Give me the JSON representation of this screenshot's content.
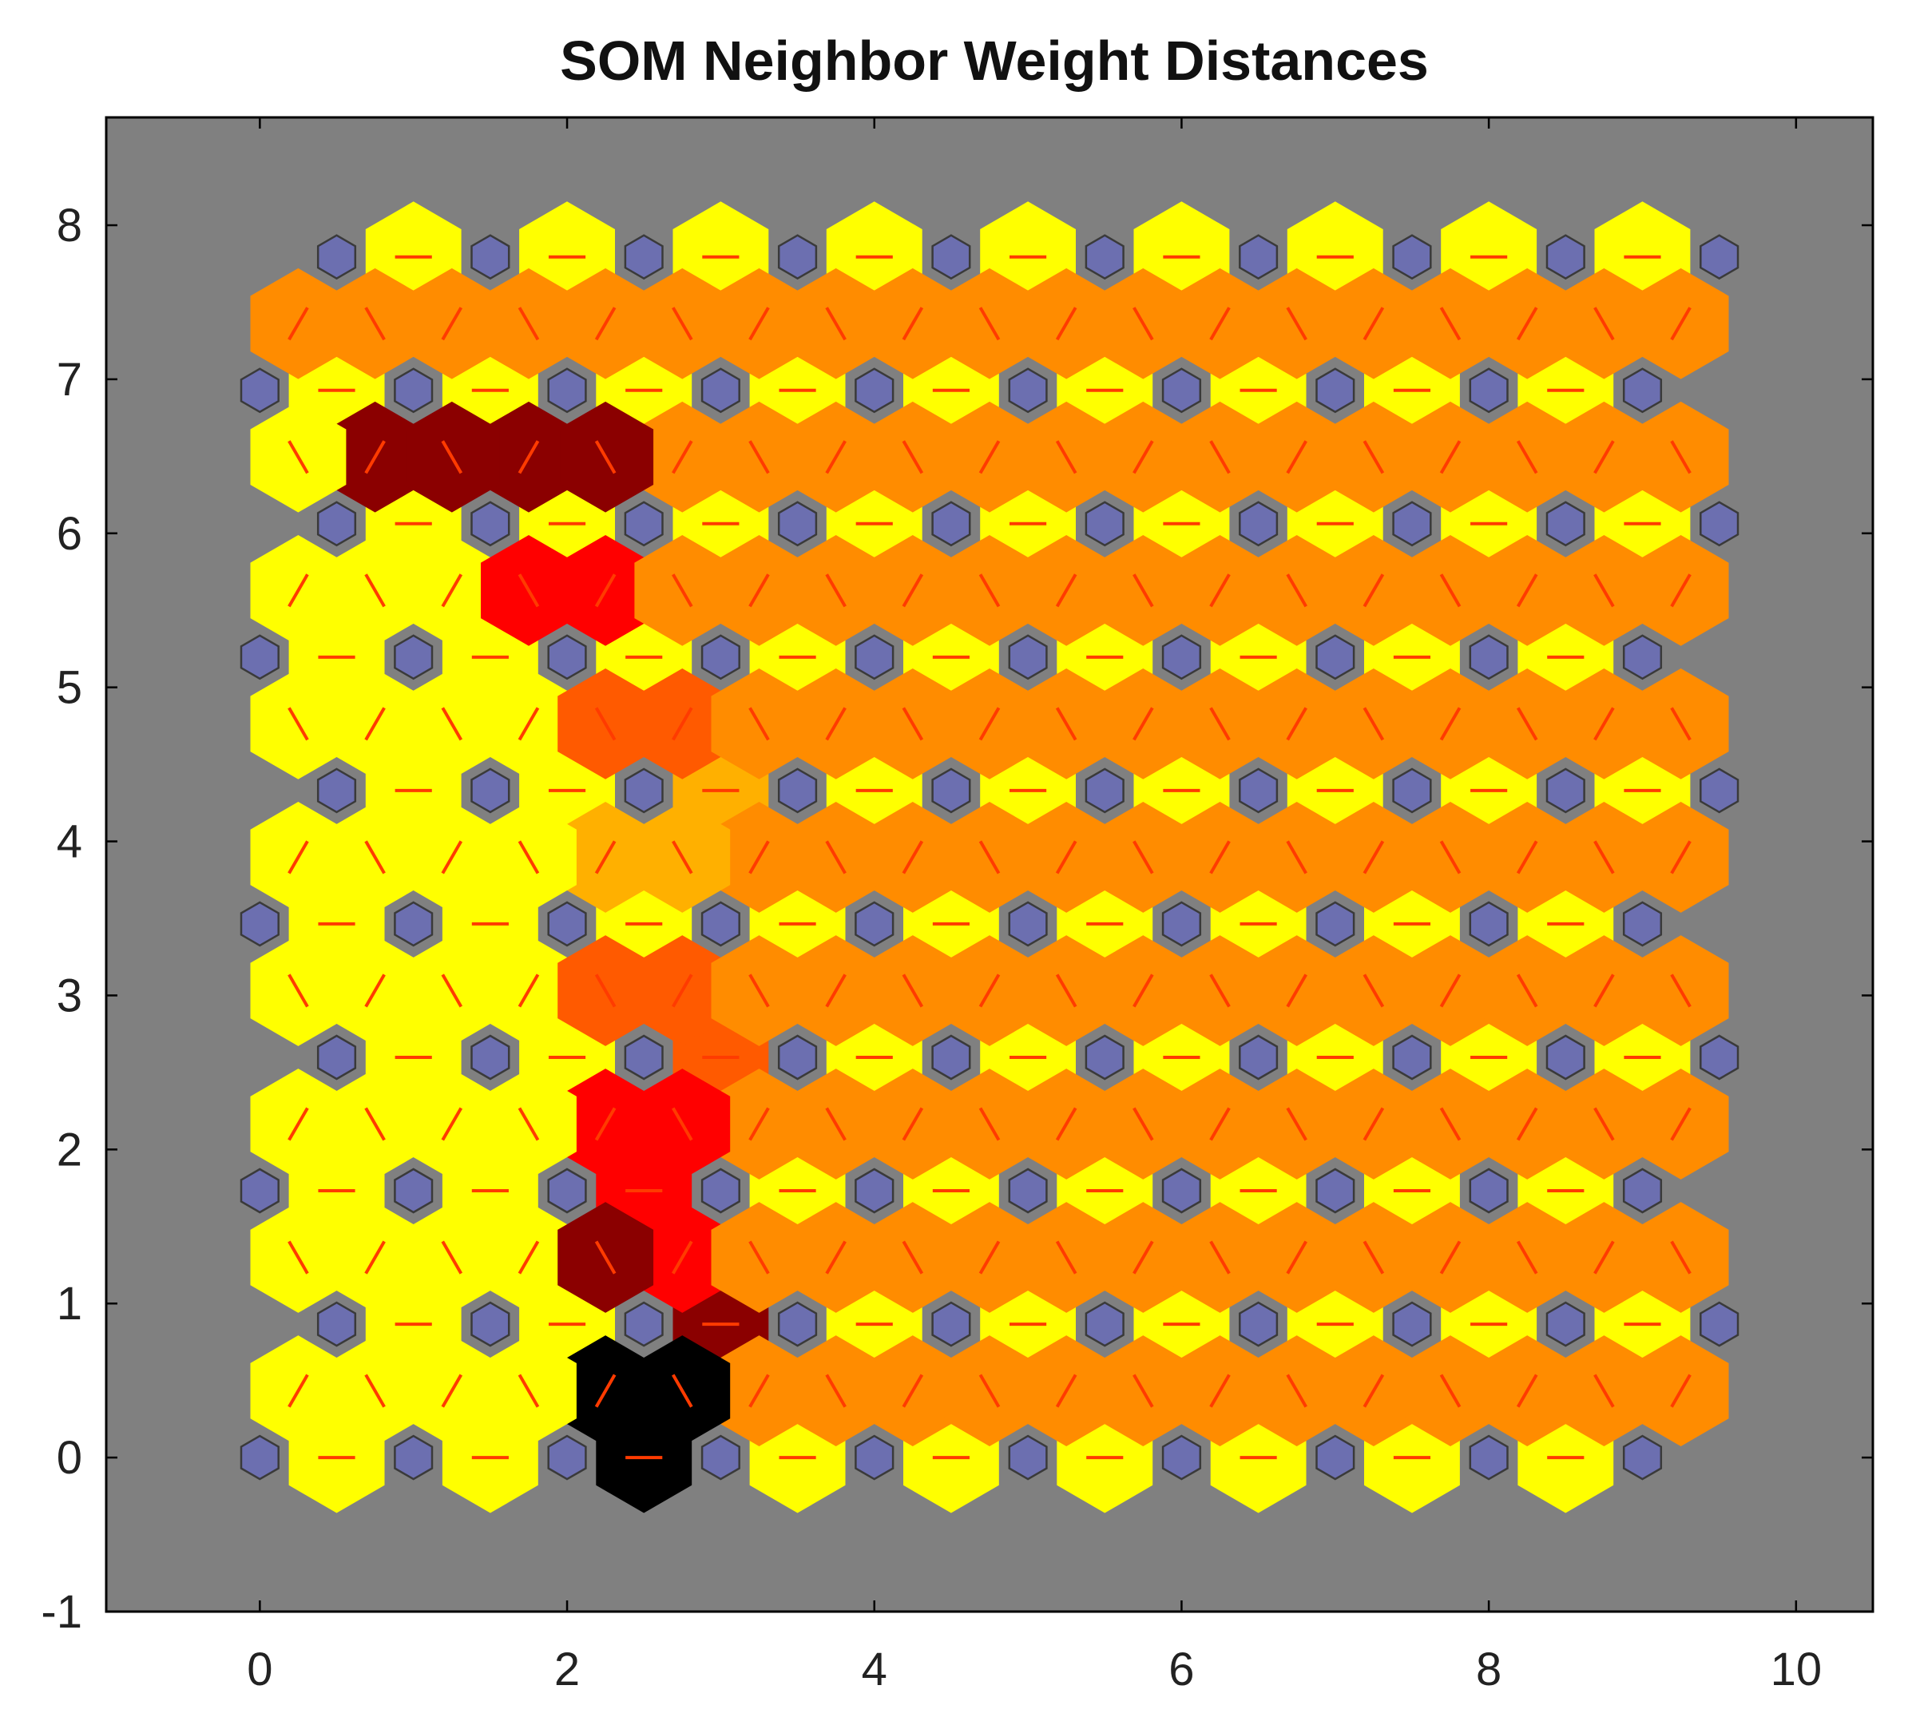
{
  "chart_data": {
    "type": "heatmap",
    "subtype": "som-neighbor-weight-distances",
    "title": "SOM Neighbor Weight Distances",
    "xlabel": "",
    "ylabel": "",
    "xlim": [
      -1,
      10.5
    ],
    "ylim": [
      -1,
      8.7
    ],
    "xticks": [
      0,
      2,
      4,
      6,
      8,
      10
    ],
    "yticks": [
      -1,
      0,
      1,
      2,
      3,
      4,
      5,
      6,
      7,
      8
    ],
    "grid": false,
    "legend": "none",
    "grid_dims": {
      "cols": 10,
      "rows": 10
    },
    "row_height": 0.866025,
    "odd_row_offset": 0.5,
    "colors": {
      "background": "#808080",
      "neuron": "#6c6fb0",
      "neuron_edge": "#3a3a3a",
      "connector": "#ff3b00",
      "level_0": "#ffff00",
      "level_1": "#ffb000",
      "level_2": "#ff8c00",
      "level_3": "#ff5a00",
      "level_4": "#ff0000",
      "level_5": "#8b0000",
      "level_6": "#000000"
    },
    "neuron_positions": "x = col + 0.5 * (row mod 2), y = row * 0.866, col 0..9, row 0..9",
    "horizontal_distances": [
      [
        0,
        0,
        6,
        0,
        0,
        0,
        0,
        0,
        0
      ],
      [
        0,
        0,
        5,
        0,
        0,
        0,
        0,
        0,
        0
      ],
      [
        0,
        0,
        4,
        0,
        0,
        0,
        0,
        0,
        0
      ],
      [
        0,
        0,
        3,
        0,
        0,
        0,
        0,
        0,
        0
      ],
      [
        0,
        0,
        0,
        0,
        0,
        0,
        0,
        0,
        0
      ],
      [
        0,
        0,
        1,
        0,
        0,
        0,
        0,
        0,
        0
      ],
      [
        0,
        0,
        0,
        0,
        0,
        0,
        0,
        0,
        0
      ],
      [
        0,
        0,
        0,
        0,
        0,
        0,
        0,
        0,
        0
      ],
      [
        0,
        0,
        0,
        0,
        0,
        0,
        0,
        0,
        0
      ],
      [
        0,
        0,
        0,
        0,
        0,
        0,
        0,
        0,
        0
      ]
    ],
    "up_right_distances": [
      [
        0,
        0,
        6,
        2,
        2,
        2,
        2,
        2,
        2,
        2
      ],
      [
        0,
        0,
        4,
        2,
        2,
        2,
        2,
        2,
        2,
        0
      ],
      [
        0,
        0,
        4,
        2,
        2,
        2,
        2,
        2,
        2,
        2
      ],
      [
        0,
        0,
        3,
        2,
        2,
        2,
        2,
        2,
        2,
        0
      ],
      [
        0,
        0,
        1,
        2,
        2,
        2,
        2,
        2,
        2,
        2
      ],
      [
        0,
        0,
        3,
        2,
        2,
        2,
        2,
        2,
        2,
        0
      ],
      [
        0,
        0,
        4,
        2,
        2,
        2,
        2,
        2,
        2,
        2
      ],
      [
        5,
        5,
        2,
        2,
        2,
        2,
        2,
        2,
        2,
        0
      ],
      [
        2,
        2,
        2,
        2,
        2,
        2,
        2,
        2,
        2,
        2
      ],
      [
        0,
        0,
        0,
        0,
        0,
        0,
        0,
        0,
        0,
        0
      ]
    ],
    "up_left_distances": [
      [
        0,
        0,
        0,
        6,
        2,
        2,
        2,
        2,
        2,
        2
      ],
      [
        0,
        0,
        5,
        2,
        2,
        2,
        2,
        2,
        2,
        2
      ],
      [
        0,
        0,
        0,
        4,
        2,
        2,
        2,
        2,
        2,
        2
      ],
      [
        0,
        0,
        3,
        2,
        2,
        2,
        2,
        2,
        2,
        2
      ],
      [
        0,
        0,
        0,
        1,
        2,
        2,
        2,
        2,
        2,
        2
      ],
      [
        0,
        0,
        3,
        2,
        2,
        2,
        2,
        2,
        2,
        2
      ],
      [
        0,
        0,
        4,
        2,
        2,
        2,
        2,
        2,
        2,
        2
      ],
      [
        0,
        5,
        5,
        2,
        2,
        2,
        2,
        2,
        2,
        2
      ],
      [
        2,
        2,
        2,
        2,
        2,
        2,
        2,
        2,
        2,
        2
      ],
      [
        0,
        0,
        0,
        0,
        0,
        0,
        0,
        0,
        0,
        0
      ]
    ]
  }
}
